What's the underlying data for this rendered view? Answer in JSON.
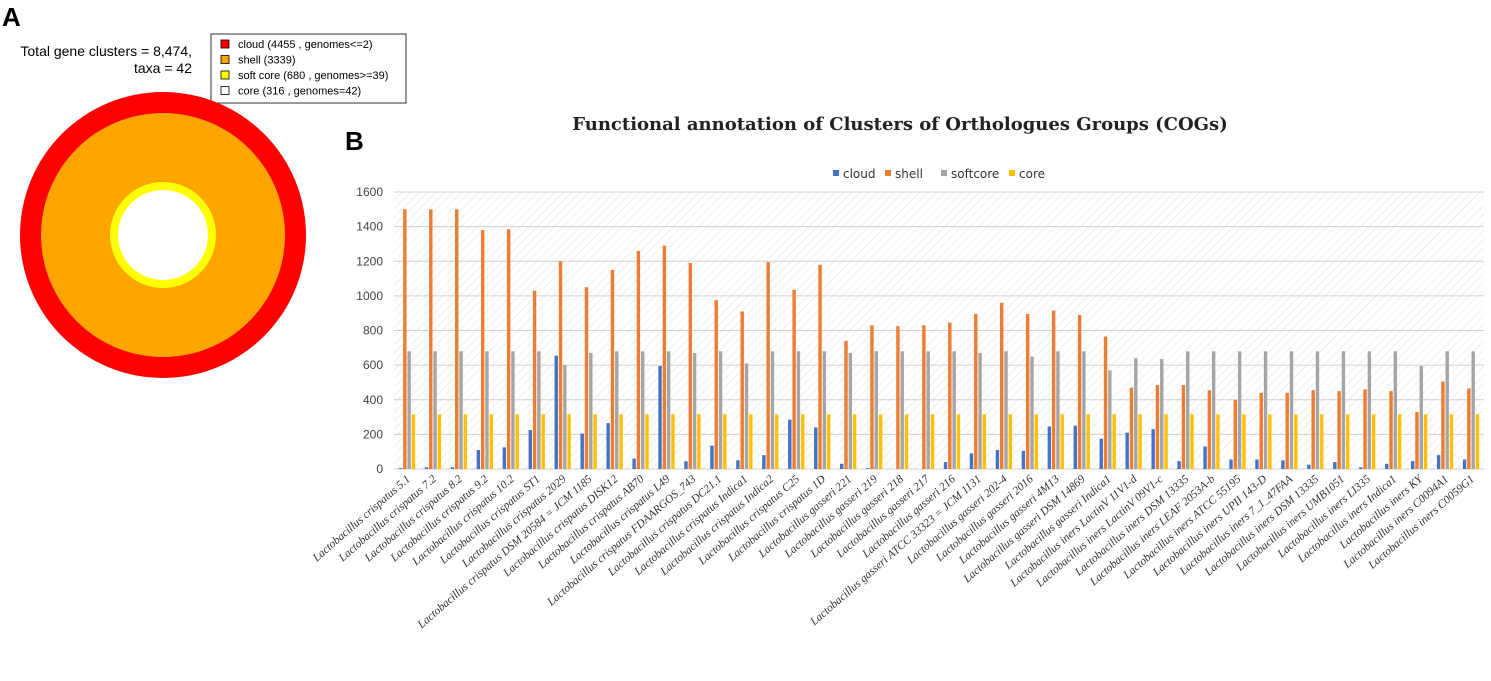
{
  "panel_a": {
    "letter": "A",
    "stat_line1": "Total gene clusters = 8,474,",
    "stat_line2": "taxa = 42",
    "legend": [
      {
        "label": "cloud  (4455 , genomes<=2)",
        "color": "#ff0000"
      },
      {
        "label": "shell  (3339)",
        "color": "#ffa500"
      },
      {
        "label": "soft core  (680 , genomes>=39)",
        "color": "#ffff00"
      },
      {
        "label": "core  (316 , genomes=42)",
        "color": "#ffffff"
      }
    ]
  },
  "panel_b": {
    "letter": "B"
  },
  "chart_data": {
    "type": "bar",
    "title": "Functional annotation of Clusters of Orthologues Groups (COGs)",
    "xlabel": "",
    "ylabel": "",
    "ylim": [
      0,
      1600
    ],
    "yticks": [
      0,
      200,
      400,
      600,
      800,
      1000,
      1200,
      1400,
      1600
    ],
    "legend_position": "top",
    "colors": {
      "cloud": "#4472c4",
      "shell": "#ed7d31",
      "softcore": "#a5a5a5",
      "core": "#ffc000"
    },
    "categories": [
      "Lactobacillus crispatus 5.1",
      "Lactobacillus crispatus 7.2",
      "Lactobacillus crispatus 8.2",
      "Lactobacillus crispatus 9.2",
      "Lactobacillus crispatus 10.2",
      "Lactobacillus crispatus ST1",
      "Lactobacillus crispatus 2029",
      "Lactobacillus crispatus DSM 20584 = JCM 1185",
      "Lactobacillus crispatus DISK12",
      "Lactobacillus crispatus AB70",
      "Lactobacillus crispatus L49",
      "Lactobacillus crispatus FDAARGOS_743",
      "Lactobacillus crispatus DC21.1",
      "Lactobacillus crispatus Indica1",
      "Lactobacillus crispatus Indica2",
      "Lactobacillus crispatus C25",
      "Lactobacillus crispatus 1D",
      "Lactobacillus gasseri 221",
      "Lactobacillus gasseri 219",
      "Lactobacillus gasseri 218",
      "Lactobacillus gasseri 217",
      "Lactobacillus gasseri 216",
      "Lactobacillus gasseri ATCC 33323 = JCM 1131",
      "Lactobacillus gasseri 202-4",
      "Lactobacillus gasseri 2016",
      "Lactobacillus gasseri 4M13",
      "Lactobacillus gasseri DSM 14869",
      "Lactobacillus gasseri Indica1",
      "Lactobacillus iners LactinV 11V1-d",
      "Lactobacillus iners LactinV 09V1-c",
      "Lactobacillus iners DSM 13335",
      "Lactobacillus iners LEAF 2053A-b",
      "Lactobacillus iners ATCC 55195",
      "Lactobacillus iners UPII 143-D",
      "Lactobacillus iners 7_1_47FAA",
      "Lactobacillus iners DSM 13335",
      "Lactobacillus iners UMB1051",
      "Lactobacillus iners LI335",
      "Lactobacillus iners Indica1",
      "Lactobacillus iners KY",
      "Lactobacillus iners C0094A1",
      "Lactobacillus iners C0059G1"
    ],
    "series": [
      {
        "name": "cloud",
        "values": [
          5,
          10,
          10,
          110,
          125,
          225,
          655,
          205,
          265,
          60,
          595,
          45,
          135,
          50,
          80,
          285,
          240,
          30,
          5,
          0,
          0,
          40,
          90,
          110,
          105,
          245,
          250,
          175,
          210,
          230,
          45,
          130,
          55,
          55,
          50,
          25,
          40,
          10,
          30,
          45,
          80,
          55
        ]
      },
      {
        "name": "shell",
        "values": [
          1500,
          1500,
          1500,
          1380,
          1385,
          1030,
          1200,
          1050,
          1150,
          1260,
          1290,
          1190,
          975,
          910,
          1195,
          1035,
          1180,
          740,
          830,
          825,
          830,
          845,
          895,
          960,
          895,
          915,
          890,
          765,
          470,
          485,
          485,
          455,
          400,
          440,
          440,
          455,
          450,
          460,
          450,
          330,
          505,
          465
        ]
      },
      {
        "name": "softcore",
        "values": [
          680,
          680,
          680,
          680,
          680,
          680,
          600,
          670,
          680,
          680,
          680,
          670,
          680,
          610,
          680,
          680,
          680,
          670,
          680,
          680,
          680,
          680,
          670,
          680,
          650,
          680,
          680,
          570,
          640,
          635,
          680,
          680,
          680,
          680,
          680,
          680,
          680,
          680,
          680,
          595,
          680,
          680
        ]
      },
      {
        "name": "core",
        "values": [
          316,
          316,
          316,
          316,
          316,
          316,
          316,
          316,
          316,
          316,
          316,
          316,
          316,
          316,
          316,
          316,
          316,
          316,
          316,
          316,
          316,
          316,
          316,
          316,
          316,
          316,
          316,
          316,
          316,
          316,
          316,
          316,
          316,
          316,
          316,
          316,
          316,
          316,
          316,
          316,
          316,
          316
        ]
      }
    ]
  }
}
